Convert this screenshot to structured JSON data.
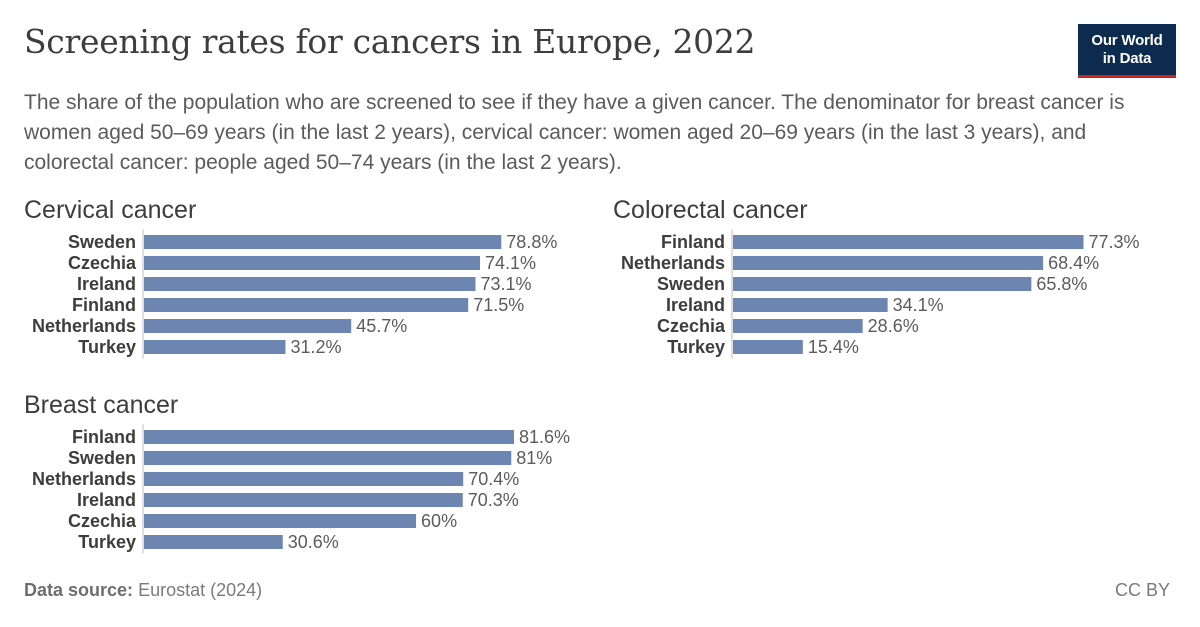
{
  "header": {
    "title": "Screening rates for cancers in Europe, 2022",
    "subtitle": "The share of the population who are screened to see if they have a given cancer. The denominator for breast cancer is women aged 50–69 years (in the last 2 years), cervical cancer: women aged 20–69 years (in the last 3 years), and colorectal cancer: people aged 50–74 years (in the last 2 years).",
    "logo_line1": "Our World",
    "logo_line2": "in Data"
  },
  "footer": {
    "source_label": "Data source:",
    "source_value": "Eurostat (2024)",
    "license": "CC BY"
  },
  "colors": {
    "bar": "#6d86b1",
    "axis": "#bdbdbd",
    "label": "#3d3d3d",
    "value": "#5b5b5b"
  },
  "chart_data": [
    {
      "type": "bar",
      "orientation": "horizontal",
      "title": "Cervical cancer",
      "categories": [
        "Sweden",
        "Czechia",
        "Ireland",
        "Finland",
        "Netherlands",
        "Turkey"
      ],
      "values": [
        78.8,
        74.1,
        73.1,
        71.5,
        45.7,
        31.2
      ],
      "value_labels": [
        "78.8%",
        "74.1%",
        "73.1%",
        "71.5%",
        "45.7%",
        "31.2%"
      ],
      "unit": "%",
      "xlim": [
        0,
        81.6
      ]
    },
    {
      "type": "bar",
      "orientation": "horizontal",
      "title": "Colorectal cancer",
      "categories": [
        "Finland",
        "Netherlands",
        "Sweden",
        "Ireland",
        "Czechia",
        "Turkey"
      ],
      "values": [
        77.3,
        68.4,
        65.8,
        34.1,
        28.6,
        15.4
      ],
      "value_labels": [
        "77.3%",
        "68.4%",
        "65.8%",
        "34.1%",
        "28.6%",
        "15.4%"
      ],
      "unit": "%",
      "xlim": [
        0,
        81.6
      ]
    },
    {
      "type": "bar",
      "orientation": "horizontal",
      "title": "Breast cancer",
      "categories": [
        "Finland",
        "Sweden",
        "Netherlands",
        "Ireland",
        "Czechia",
        "Turkey"
      ],
      "values": [
        81.6,
        81,
        70.4,
        70.3,
        60,
        30.6
      ],
      "value_labels": [
        "81.6%",
        "81%",
        "70.4%",
        "70.3%",
        "60%",
        "30.6%"
      ],
      "unit": "%",
      "xlim": [
        0,
        81.6
      ]
    }
  ]
}
